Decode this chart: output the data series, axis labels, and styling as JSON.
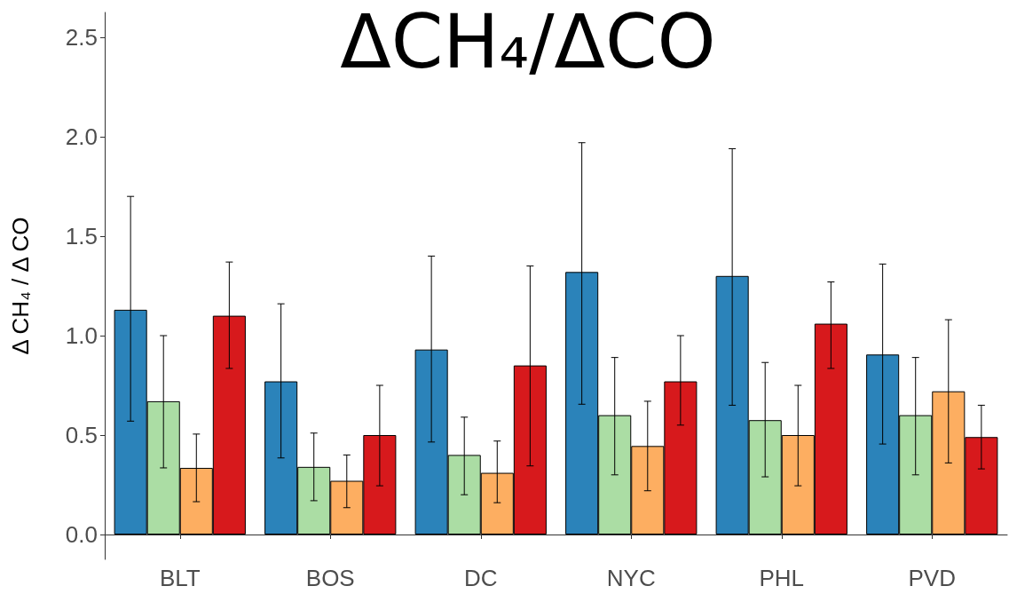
{
  "chart_data": {
    "type": "bar",
    "title": "ΔCH₄/ΔCO",
    "ylabel": "Δ CH₄ / Δ CO",
    "categories": [
      "BLT",
      "BOS",
      "DC",
      "NYC",
      "PHL",
      "PVD"
    ],
    "series": [
      {
        "color": "#2b83ba",
        "values": [
          1.13,
          0.77,
          0.93,
          1.32,
          1.3,
          0.905
        ],
        "errors": [
          [
            0.57,
            1.7
          ],
          [
            0.385,
            1.16
          ],
          [
            0.465,
            1.4
          ],
          [
            0.655,
            1.97
          ],
          [
            0.65,
            1.94
          ],
          [
            0.455,
            1.36
          ]
        ]
      },
      {
        "color": "#abdda4",
        "values": [
          0.67,
          0.34,
          0.4,
          0.6,
          0.575,
          0.6
        ],
        "errors": [
          [
            0.335,
            1.0
          ],
          [
            0.17,
            0.51
          ],
          [
            0.2,
            0.59
          ],
          [
            0.3,
            0.89
          ],
          [
            0.29,
            0.865
          ],
          [
            0.3,
            0.89
          ]
        ]
      },
      {
        "color": "#fdae61",
        "values": [
          0.335,
          0.27,
          0.31,
          0.445,
          0.5,
          0.72
        ],
        "errors": [
          [
            0.165,
            0.505
          ],
          [
            0.135,
            0.4
          ],
          [
            0.16,
            0.47
          ],
          [
            0.22,
            0.67
          ],
          [
            0.245,
            0.75
          ],
          [
            0.36,
            1.08
          ]
        ]
      },
      {
        "color": "#d7191c",
        "values": [
          1.1,
          0.5,
          0.85,
          0.77,
          1.06,
          0.49
        ],
        "errors": [
          [
            0.835,
            1.37
          ],
          [
            0.245,
            0.75
          ],
          [
            0.345,
            1.35
          ],
          [
            0.55,
            1.0
          ],
          [
            0.835,
            1.27
          ],
          [
            0.33,
            0.65
          ]
        ]
      }
    ],
    "ylim": [
      -0.125,
      2.625
    ],
    "yticks": [
      {
        "value": 0,
        "label": "0.0"
      },
      0.5,
      {
        "value": 1,
        "label": "1.0"
      },
      1.5,
      {
        "value": 2,
        "label": "2.0"
      },
      2.5
    ],
    "grid": false
  }
}
